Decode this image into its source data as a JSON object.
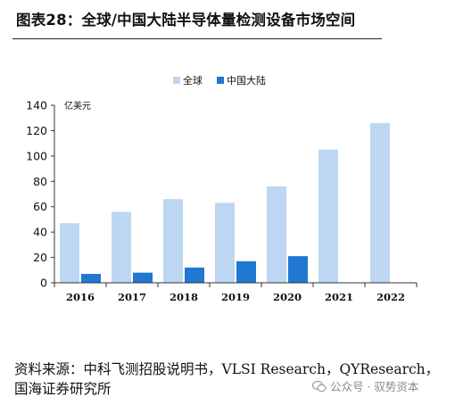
{
  "title": "图表28：全球/中国大陆半导体量检测设备市场空间",
  "source_text": "资料来源：中科飞测招股说明书，VLSI Research，QYResearch，国海证券研究所",
  "watermark": "公众号 · 驭势资本",
  "colors": {
    "global": "#bdd7f3",
    "china": "#1f78d1",
    "axis": "#333333",
    "text": "#111111"
  },
  "chart_data": {
    "type": "bar",
    "categories": [
      "2016",
      "2017",
      "2018",
      "2019",
      "2020",
      "2021",
      "2022"
    ],
    "series": [
      {
        "name": "全球",
        "values": [
          47,
          56,
          66,
          63,
          76,
          105,
          126
        ]
      },
      {
        "name": "中国大陆",
        "values": [
          7,
          8,
          12,
          17,
          21,
          null,
          null
        ]
      }
    ],
    "unit_label": "亿美元",
    "ylim": [
      0,
      140
    ],
    "yticks": [
      0,
      20,
      40,
      60,
      80,
      100,
      120,
      140
    ],
    "grid": false,
    "legend_position": "top-center"
  }
}
